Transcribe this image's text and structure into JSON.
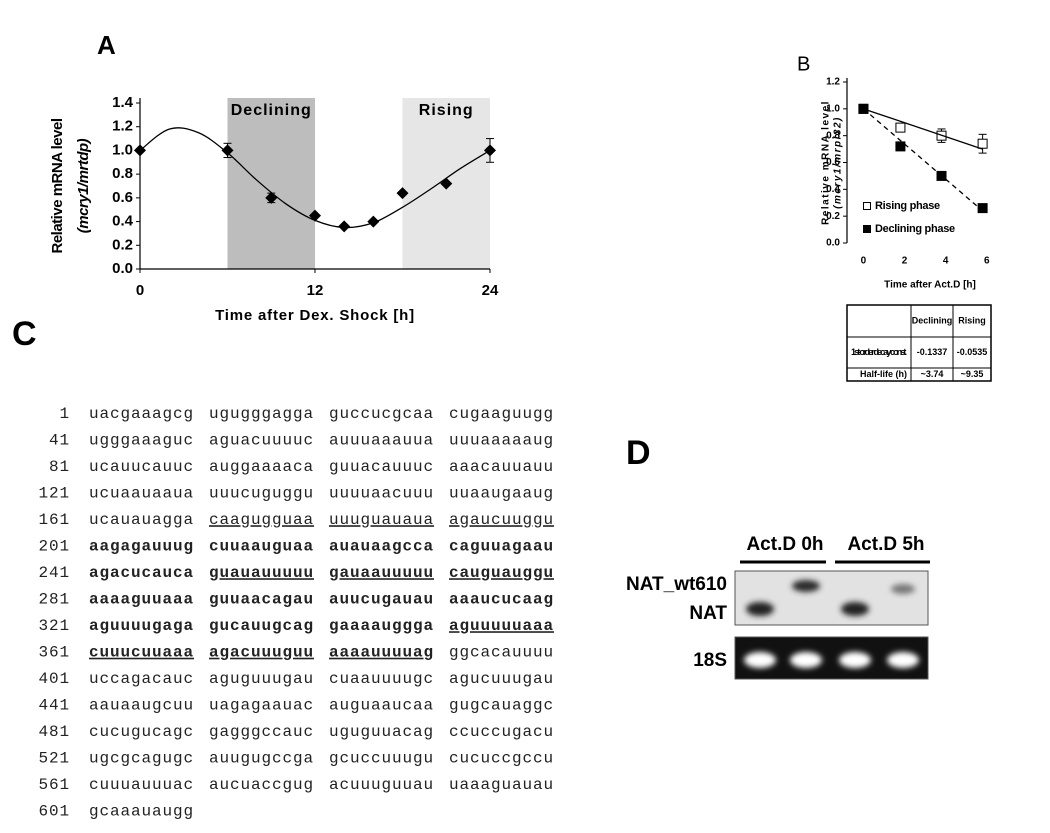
{
  "panels": {
    "a": "A",
    "b": "B",
    "c": "C",
    "d": "D"
  },
  "chart_data": [
    {
      "type": "scatter",
      "xlabel": "Time after Dex. Shock [h]",
      "ylabel": [
        "Relative mRNA level",
        "(mcry1/mrtdp)"
      ],
      "xlim": [
        0,
        24
      ],
      "ylim": [
        0,
        1.4
      ],
      "xticks": [
        0,
        12,
        24
      ],
      "yticks": [
        {
          "value": 0,
          "label": "0.0"
        },
        0.2,
        0.4,
        0.6,
        0.8,
        {
          "value": 1,
          "label": "1.0"
        },
        1.2,
        1.4
      ],
      "shaded_regions": [
        {
          "label": "Declining",
          "xlim": [
            6,
            12
          ],
          "color": "#bdbdbd"
        },
        {
          "label": "Rising",
          "xlim": [
            18,
            24
          ],
          "color": "#e6e6e6"
        }
      ],
      "series": [
        {
          "color": "#000000",
          "marker": "diamond",
          "x": [
            0,
            6,
            9,
            12,
            14,
            16,
            18,
            21,
            24
          ],
          "values": [
            1.0,
            1.0,
            0.6,
            0.45,
            0.36,
            0.4,
            0.64,
            0.72,
            1.0
          ],
          "errors": [
            null,
            0.06,
            0.04,
            null,
            null,
            null,
            null,
            null,
            0.1
          ]
        },
        {
          "color": "#000000",
          "style": "solid",
          "x": [
            0,
            2,
            4,
            6,
            8,
            10,
            12,
            14,
            16,
            18,
            20,
            22,
            24
          ],
          "values": [
            1.0,
            1.18,
            1.15,
            0.98,
            0.75,
            0.55,
            0.41,
            0.35,
            0.39,
            0.52,
            0.68,
            0.85,
            1.0
          ]
        }
      ]
    },
    {
      "type": "line",
      "xlabel": "Time after Act.D [h]",
      "ylabel": [
        "Relative mRNA level",
        "(mcry1/mrpl32)"
      ],
      "xlim": [
        -0.8,
        6.5
      ],
      "ylim": [
        0,
        1.2
      ],
      "xticks": [
        0,
        2,
        4,
        6
      ],
      "yticks": [
        {
          "value": 0,
          "label": "0.0"
        },
        0.2,
        0.4,
        0.6,
        0.8,
        {
          "value": 1,
          "label": "1.0"
        },
        1.2
      ],
      "legend": "lower left",
      "series": [
        {
          "name": "Rising phase",
          "color": "#000000",
          "marker": "square-open",
          "x": [
            0,
            1.8,
            3.8,
            5.8
          ],
          "values": [
            1.0,
            0.86,
            0.8,
            0.74
          ],
          "errors": [
            0.03,
            0.03,
            0.05,
            0.07
          ]
        },
        {
          "name": "Declining phase",
          "color": "#000000",
          "marker": "square",
          "x": [
            0,
            1.8,
            3.8,
            5.8
          ],
          "values": [
            1.0,
            0.72,
            0.5,
            0.26
          ],
          "errors": [
            0.02,
            null,
            null,
            null
          ]
        },
        {
          "color": "#000000",
          "style": "solid",
          "x": [
            0,
            5.8
          ],
          "values": [
            1.0,
            0.7
          ]
        },
        {
          "color": "#000000",
          "style": "dashed",
          "x": [
            0,
            5.8
          ],
          "values": [
            1.0,
            0.24
          ]
        }
      ]
    }
  ],
  "table": {
    "header": [
      "Declining",
      "Rising"
    ],
    "rows": [
      [
        "1st-order decay const.",
        "-0.1337",
        "-0.0535"
      ],
      [
        "Half-life (h)",
        "~3.74",
        "~9.35"
      ]
    ]
  },
  "sequence": {
    "rows": [
      {
        "start": 1,
        "groups": [
          "uacgaaagcg",
          "ugugggagga",
          "guccucgcaa",
          "cugaaguugg"
        ]
      },
      {
        "start": 41,
        "groups": [
          "ugggaaaguc",
          "aguacuuuuc",
          "auuuaaauua",
          "uuuaaaaaug"
        ]
      },
      {
        "start": 81,
        "groups": [
          "ucauucauuc",
          "auggaaaaca",
          "guuacauuuc",
          "aaacauuauu"
        ]
      },
      {
        "start": 121,
        "groups": [
          "ucuaauaaua",
          "uuucuguggu",
          "uuuuaacuuu",
          "uuaaugaaug"
        ]
      },
      {
        "start": 161,
        "groups": [
          "ucauauagga",
          "caagugguaa",
          "uuuguauaua",
          "agaucuuggu"
        ]
      },
      {
        "start": 201,
        "groups": [
          "aagagauuug",
          "cuuaauguaa",
          "auauaagcca",
          "caguuagaau"
        ]
      },
      {
        "start": 241,
        "groups": [
          "agacucauca",
          "guauauuuuu",
          "gauaauuuuu",
          "cauguauggu"
        ]
      },
      {
        "start": 281,
        "groups": [
          "aaaaguuaaa",
          "guuaacagau",
          "auucugauau",
          "aaaucucaag"
        ]
      },
      {
        "start": 321,
        "groups": [
          "aguuuugaga",
          "gucauugcag",
          "gaaaauggga",
          "aguuuuuaaa"
        ]
      },
      {
        "start": 361,
        "groups": [
          "cuuucuuaaa",
          "agacuuuguu",
          "aaaauuuuag",
          "ggcacauuuu"
        ]
      },
      {
        "start": 401,
        "groups": [
          "uccagacauc",
          "aguguuugau",
          "cuaauuuugc",
          "agucuuugau"
        ]
      },
      {
        "start": 441,
        "groups": [
          "aauaaugcuu",
          "uagagaauac",
          "auguaaucaa",
          "gugcauaggc"
        ]
      },
      {
        "start": 481,
        "groups": [
          "cucugucagc",
          "gagggccauc",
          "uguguuacag",
          "ccuccugacu"
        ]
      },
      {
        "start": 521,
        "groups": [
          "ugcgcagugc",
          "auugugccga",
          "gcuccuuugu",
          "cucuccgccu"
        ]
      },
      {
        "start": 561,
        "groups": [
          "cuuuauuuac",
          "aucuaccgug",
          "acuuuguuau",
          "uaaaguauau"
        ]
      },
      {
        "start": 601,
        "groups": [
          "gcaaauaugg"
        ]
      }
    ]
  },
  "gel": {
    "lanes": [
      "Act.D 0h",
      "Act.D 5h"
    ],
    "bands": [
      "NAT_wt610",
      "NAT"
    ],
    "control": "18S"
  }
}
